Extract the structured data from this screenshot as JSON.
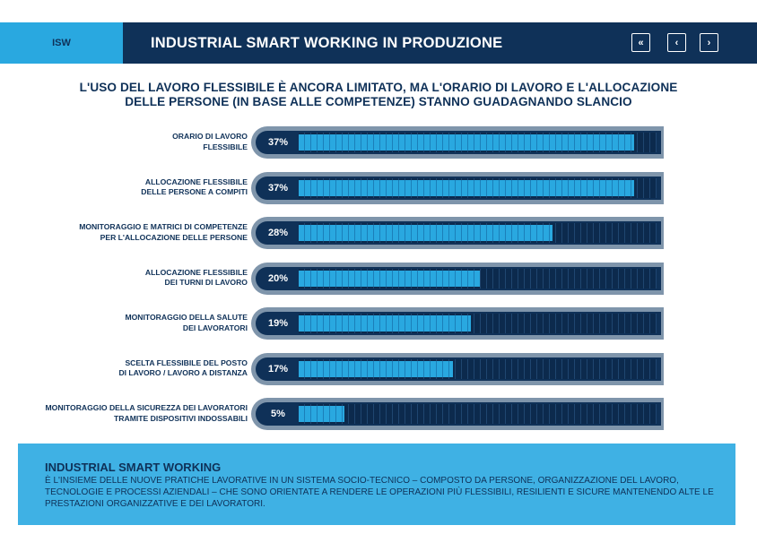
{
  "header": {
    "tag": "ISW",
    "title": "INDUSTRIAL SMART WORKING IN PRODUZIONE",
    "nav": {
      "first": "«",
      "prev": "‹",
      "next": "›"
    }
  },
  "headline": {
    "line1": "L'USO DEL LAVORO FLESSIBILE È ANCORA LIMITATO, MA L'ORARIO DI LAVORO E L'ALLOCAZIONE",
    "line2": "DELLE PERSONE (IN BASE ALLE COMPETENZE) STANNO GUADAGNANDO SLANCIO"
  },
  "chart_data": {
    "type": "bar",
    "orientation": "horizontal",
    "xlim": [
      0,
      40
    ],
    "rows": [
      {
        "label_lines": [
          "ORARIO DI LAVORO",
          "FLESSIBILE"
        ],
        "value": 37,
        "value_label": "37%"
      },
      {
        "label_lines": [
          "ALLOCAZIONE FLESSIBILE",
          "DELLE PERSONE A COMPITI"
        ],
        "value": 37,
        "value_label": "37%"
      },
      {
        "label_lines": [
          "MONITORAGGIO E MATRICI DI COMPETENZE",
          "PER L'ALLOCAZIONE DELLE PERSONE"
        ],
        "value": 28,
        "value_label": "28%"
      },
      {
        "label_lines": [
          "ALLOCAZIONE FLESSIBILE",
          "DEI TURNI DI LAVORO"
        ],
        "value": 20,
        "value_label": "20%"
      },
      {
        "label_lines": [
          "MONITORAGGIO DELLA SALUTE",
          "DEI LAVORATORI"
        ],
        "value": 19,
        "value_label": "19%"
      },
      {
        "label_lines": [
          "SCELTA FLESSIBILE DEL POSTO",
          "DI LAVORO / LAVORO A DISTANZA"
        ],
        "value": 17,
        "value_label": "17%"
      },
      {
        "label_lines": [
          "MONITORAGGIO DELLA SICUREZZA DEI LAVORATORI",
          "TRAMITE DISPOSITIVI INDOSSABILI"
        ],
        "value": 5,
        "value_label": "5%"
      }
    ],
    "colors": {
      "fill": "#29a8e0",
      "track": "#0f3158",
      "border": "#7f95ab"
    }
  },
  "info": {
    "title": "INDUSTRIAL SMART WORKING",
    "text": "È L'INSIEME DELLE NUOVE PRATICHE LAVORATIVE IN UN SISTEMA SOCIO-TECNICO – COMPOSTO DA PERSONE, ORGANIZZAZIONE DEL LAVORO, TECNOLOGIE E PROCESSI AZIENDALI – CHE SONO ORIENTATE A RENDERE LE OPERAZIONI PIÙ FLESSIBILI, RESILIENTI E SICURE MANTENENDO ALTE LE PRESTAZIONI ORGANIZZATIVE E DEI LAVORATORI."
  }
}
